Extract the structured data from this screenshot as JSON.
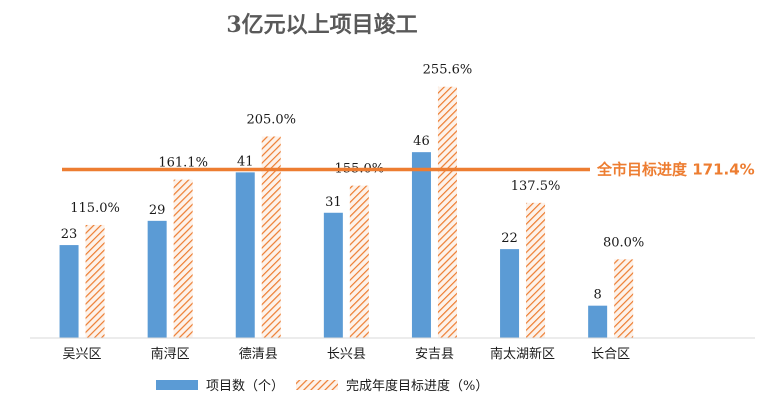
{
  "chart_data": {
    "type": "bar",
    "title": "3亿元以上项目竣工",
    "categories": [
      "吴兴区",
      "南浔区",
      "德清县",
      "长兴县",
      "安吉县",
      "南太湖新区",
      "长合区"
    ],
    "series": [
      {
        "name": "项目数（个）",
        "values": [
          23,
          29,
          41,
          31,
          46,
          22,
          8
        ],
        "labels": [
          "23",
          "29",
          "41",
          "31",
          "46",
          "22",
          "8"
        ],
        "color": "#5b9bd5",
        "pattern": "solid"
      },
      {
        "name": "完成年度目标进度（%）",
        "values": [
          115.0,
          161.1,
          205.0,
          155.0,
          255.6,
          137.5,
          80.0
        ],
        "labels": [
          "115.0%",
          "161.1%",
          "205.0%",
          "155.0%",
          "255.6%",
          "137.5%",
          "80.0%"
        ],
        "color": "#ed7d31",
        "pattern": "diagonal-hatch"
      }
    ],
    "target_line": {
      "label": "全市目标进度 171.4%",
      "value": 171.4,
      "color": "#ed7d31"
    },
    "legend": {
      "position": "bottom"
    },
    "grid": false
  }
}
